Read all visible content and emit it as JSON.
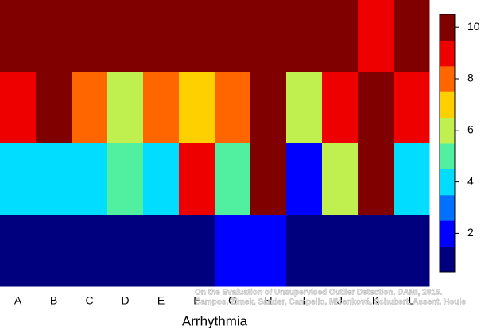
{
  "chart_data": {
    "type": "heatmap",
    "x_label": "Arrhythmia",
    "categories": [
      "A",
      "B",
      "C",
      "D",
      "E",
      "F",
      "G",
      "H",
      "I",
      "J",
      "K",
      "L"
    ],
    "values": [
      [
        10,
        10,
        10,
        10,
        10,
        10,
        10,
        10,
        10,
        10,
        9,
        10
      ],
      [
        9,
        10,
        8,
        6,
        8,
        7,
        8,
        10,
        6,
        9,
        10,
        9
      ],
      [
        4,
        4,
        4,
        5,
        4,
        9,
        5,
        10,
        2,
        6,
        10,
        4
      ],
      [
        1,
        1,
        1,
        1,
        1,
        1,
        2,
        2,
        1,
        1,
        1,
        1
      ]
    ],
    "colors": [
      "#00007f",
      "#0000ff",
      "#0070ff",
      "#00ddff",
      "#50f0a0",
      "#c0f050",
      "#ffd000",
      "#ff6600",
      "#ee0000",
      "#800000"
    ],
    "clim": [
      0.5,
      10.5
    ],
    "cticks": [
      2,
      4,
      6,
      8,
      10
    ],
    "source": [
      "On the Evaluation of Unsupervised Outlier Detection. DAMI, 2015.",
      "Campos, Zimek, Sander, Campello, Micenková, Schubert, Assent, Houle"
    ]
  }
}
